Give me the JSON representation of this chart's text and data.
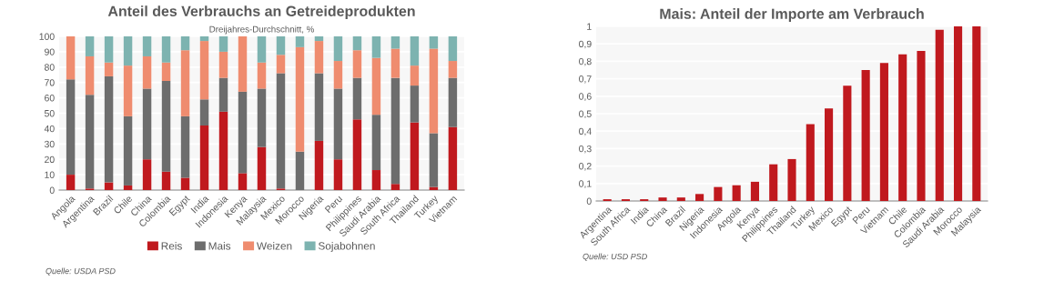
{
  "chart_data": [
    {
      "type": "bar",
      "title": "Anteil des Verbrauchs an Getreideprodukten",
      "subtitle": "Dreijahres-Durchschnitt, %",
      "stacked": true,
      "categories": [
        "Angola",
        "Argentina",
        "Brazil",
        "Chile",
        "China",
        "Colombia",
        "Egypt",
        "India",
        "Indonesia",
        "Kenya",
        "Malaysia",
        "Mexico",
        "Morocco",
        "Nigeria",
        "Peru",
        "Philippines",
        "Saudi Arabia",
        "South Africa",
        "Thailand",
        "Turkey",
        "Vietnam"
      ],
      "series": [
        {
          "name": "Reis",
          "color": "#c0191e",
          "values": [
            10,
            1,
            5,
            3,
            20,
            12,
            8,
            42,
            51,
            11,
            28,
            1,
            0,
            32,
            20,
            46,
            13,
            4,
            44,
            2,
            41
          ]
        },
        {
          "name": "Mais",
          "color": "#6d6d6d",
          "values": [
            62,
            61,
            69,
            45,
            46,
            59,
            40,
            17,
            22,
            53,
            38,
            75,
            25,
            44,
            46,
            27,
            36,
            69,
            24,
            35,
            32
          ]
        },
        {
          "name": "Weizen",
          "color": "#ef8c6f",
          "values": [
            28,
            25,
            9,
            33,
            21,
            12,
            43,
            38,
            17,
            36,
            17,
            12,
            68,
            21,
            18,
            18,
            37,
            19,
            13,
            55,
            11
          ]
        },
        {
          "name": "Sojabohnen",
          "color": "#7db3b0",
          "values": [
            0,
            13,
            17,
            19,
            13,
            17,
            9,
            3,
            10,
            0,
            17,
            12,
            7,
            3,
            16,
            9,
            14,
            8,
            19,
            8,
            16
          ]
        }
      ],
      "ylim": [
        0,
        100
      ],
      "yticks": [
        0,
        10,
        20,
        30,
        40,
        50,
        60,
        70,
        80,
        90,
        100
      ],
      "grid": "y",
      "legend": "bottom",
      "annotations": [
        "Quelle: USDA PSD"
      ]
    },
    {
      "type": "bar",
      "title": "Mais: Anteil der Importe am Verbrauch",
      "categories": [
        "Argentina",
        "South Africa",
        "India",
        "China",
        "Brazil",
        "Nigeria",
        "Indonesia",
        "Angola",
        "Kenya",
        "Philippines",
        "Thailand",
        "Turkey",
        "Mexico",
        "Egypt",
        "Peru",
        "Vietnam",
        "Chile",
        "Colombia",
        "Saudi Arabia",
        "Morocco",
        "Malaysia"
      ],
      "series": [
        {
          "color": "#c0191e",
          "values": [
            0.01,
            0.01,
            0.01,
            0.02,
            0.02,
            0.04,
            0.08,
            0.09,
            0.11,
            0.21,
            0.24,
            0.44,
            0.53,
            0.66,
            0.75,
            0.79,
            0.84,
            0.86,
            0.98,
            1.0,
            1.0
          ]
        }
      ],
      "ylim": [
        0,
        1
      ],
      "yticks": [
        0,
        {
          "value": 0.1,
          "label": "0,1"
        },
        {
          "value": 0.2,
          "label": "0,2"
        },
        {
          "value": 0.3,
          "label": "0,3"
        },
        {
          "value": 0.4,
          "label": "0,4"
        },
        {
          "value": 0.5,
          "label": "0,5"
        },
        {
          "value": 0.6,
          "label": "0,6"
        },
        {
          "value": 0.7,
          "label": "0,7"
        },
        {
          "value": 0.8,
          "label": "0,8"
        },
        {
          "value": 0.9,
          "label": "0,9"
        },
        1
      ],
      "grid": "y",
      "annotations": [
        "Quelle: USD PSD"
      ]
    }
  ]
}
